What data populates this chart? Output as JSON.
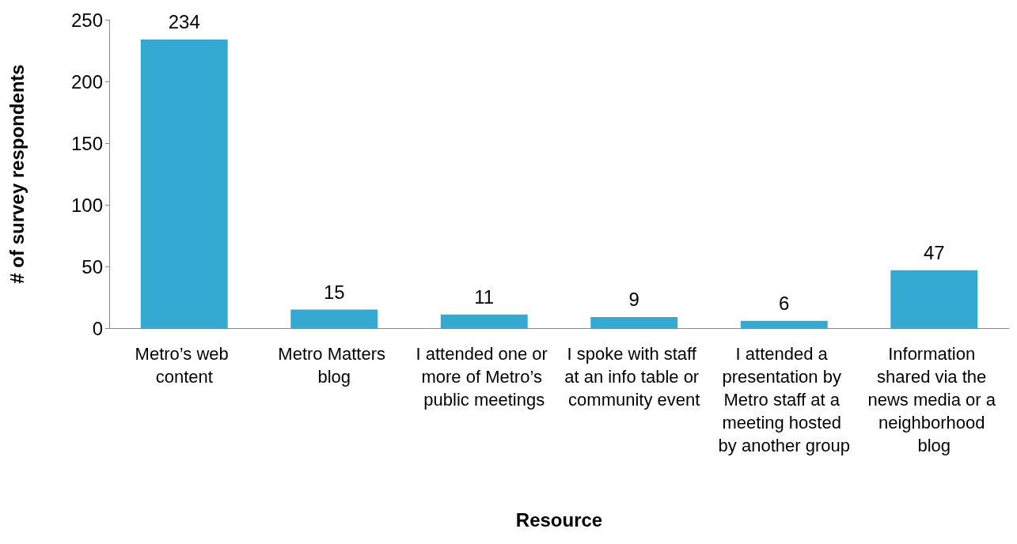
{
  "chart_data": {
    "type": "bar",
    "xlabel": "Resource",
    "ylabel": "# of survey respondents",
    "categories": [
      "Metro’s web content",
      "Metro Matters blog",
      "I attended one or more of Metro’s public meetings",
      "I spoke with staff at an info table or community event",
      "I attended a presentation by Metro staff at a meeting hosted by another group",
      "Information shared via the news media or a neighborhood blog"
    ],
    "values": [
      234,
      15,
      11,
      9,
      6,
      47
    ],
    "color": "#34a9d1",
    "ylim": [
      0,
      250
    ],
    "yticks": [
      0,
      50,
      100,
      150,
      200,
      250
    ],
    "grid": false,
    "data_labels": true
  }
}
